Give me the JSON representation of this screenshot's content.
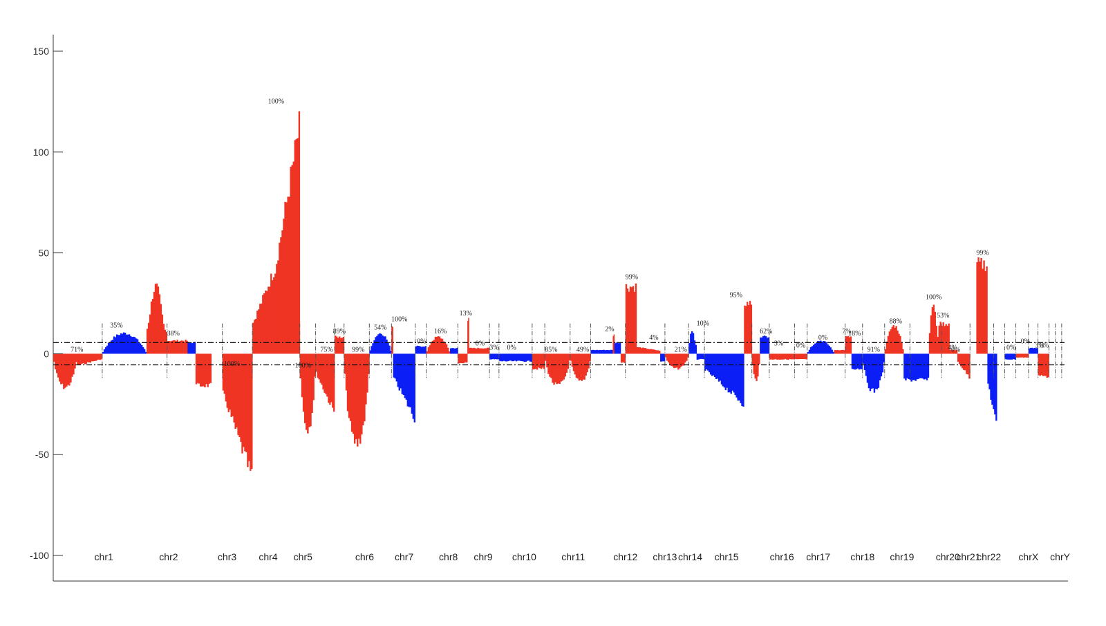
{
  "colors": {
    "gain": "#ef3424",
    "loss": "#0a1ef5",
    "axis": "#333333",
    "threshold": "#111111"
  },
  "chart_data": {
    "type": "bar",
    "title": "",
    "xlabel": "",
    "ylabel": "",
    "ylim": [
      -100,
      150
    ],
    "yticks": [
      -100,
      -50,
      0,
      50,
      100,
      150
    ],
    "threshold_lines": [
      5.5,
      -5.5
    ],
    "grid": false,
    "legend": "none",
    "chromosomes": [
      {
        "label": "chr1",
        "start": 0,
        "end": 3.1,
        "pct": "71%",
        "pct_at": 1.5,
        "pct_y": 0,
        "segs": [
          {
            "s": 0,
            "e": 1.5,
            "v": -18,
            "c": "r",
            "shape": "dip"
          },
          {
            "s": 1.5,
            "e": 3.1,
            "v": -7,
            "c": "r",
            "shape": "tail"
          }
        ]
      },
      {
        "label": "chr2",
        "start": 3.1,
        "end": 7.2,
        "pct": "35%",
        "pct_at": 4.0,
        "pct_y": 12,
        "segs": [
          {
            "s": 3.1,
            "e": 5.9,
            "v": 11,
            "c": "b",
            "shape": "hill"
          },
          {
            "s": 5.9,
            "e": 7.2,
            "v": 36,
            "c": "r",
            "shape": "peak"
          }
        ]
      },
      {
        "label": "chr3",
        "start": 7.2,
        "end": 10.7,
        "pct": "38%",
        "pct_at": 7.6,
        "pct_y": 8,
        "segs": [
          {
            "s": 7.2,
            "e": 8.5,
            "v": 7,
            "c": "r",
            "shape": "flat"
          },
          {
            "s": 8.5,
            "e": 9.0,
            "v": 6,
            "c": "b",
            "shape": "flat"
          },
          {
            "s": 9.0,
            "e": 10.0,
            "v": -17,
            "c": "r",
            "shape": "flat"
          }
        ]
      },
      {
        "label": "chr4",
        "start": 10.7,
        "end": 12.6,
        "pct": "100%",
        "pct_at": 11.3,
        "pct_y": -7,
        "segs": [
          {
            "s": 10.7,
            "e": 12.6,
            "v": -67,
            "c": "r",
            "shape": "ramp-down"
          }
        ]
      },
      {
        "label": "chr5",
        "start": 12.6,
        "end": 15.6,
        "pct": "100%",
        "pct_at": 14.1,
        "pct_y": 123,
        "segs": [
          {
            "s": 12.6,
            "e": 14.0,
            "v": 45,
            "c": "r",
            "shape": "ramp-up"
          },
          {
            "s": 14.0,
            "e": 15.6,
            "v": 123,
            "c": "r",
            "shape": "ramp-up"
          }
        ]
      },
      {
        "label": "",
        "start": 15.6,
        "end": 16.6,
        "pct": "100%",
        "pct_at": 15.8,
        "pct_y": -8,
        "segs": [
          {
            "s": 15.6,
            "e": 16.6,
            "v": -40,
            "c": "r",
            "shape": "dip"
          }
        ]
      },
      {
        "label": "",
        "start": 16.6,
        "end": 17.8,
        "pct": "75%",
        "pct_at": 17.3,
        "pct_y": 0,
        "segs": [
          {
            "s": 16.6,
            "e": 17.8,
            "v": -32,
            "c": "r",
            "shape": "ramp-down"
          }
        ]
      },
      {
        "label": "",
        "start": 17.8,
        "end": 18.4,
        "pct": "89%",
        "pct_at": 18.1,
        "pct_y": 9,
        "segs": [
          {
            "s": 17.8,
            "e": 18.4,
            "v": 9,
            "c": "r",
            "shape": "flat"
          }
        ]
      },
      {
        "label": "",
        "start": 18.4,
        "end": 20.0,
        "pct": "99%",
        "pct_at": 19.3,
        "pct_y": 0,
        "segs": [
          {
            "s": 18.4,
            "e": 20.0,
            "v": -48,
            "c": "r",
            "shape": "dip"
          }
        ]
      },
      {
        "label": "",
        "start": 20.0,
        "end": 21.4,
        "pct": "54%",
        "pct_at": 20.7,
        "pct_y": 11,
        "segs": [
          {
            "s": 20.0,
            "e": 21.4,
            "v": 11,
            "c": "b",
            "shape": "hill"
          }
        ]
      },
      {
        "label": "",
        "start": 21.4,
        "end": 22.9,
        "pct": "100%",
        "pct_at": 21.9,
        "pct_y": 15,
        "segs": [
          {
            "s": 21.4,
            "e": 21.5,
            "v": 15,
            "c": "r",
            "shape": "flat"
          },
          {
            "s": 21.5,
            "e": 22.9,
            "v": -35,
            "c": "b",
            "shape": "ramp-up"
          }
        ]
      },
      {
        "label": "",
        "start": 22.9,
        "end": 23.6,
        "pct": "0%",
        "pct_at": 23.3,
        "pct_y": 4,
        "segs": [
          {
            "s": 22.9,
            "e": 23.6,
            "v": 4,
            "c": "b",
            "shape": "flat"
          }
        ]
      },
      {
        "label": "",
        "start": 23.6,
        "end": 25.6,
        "pct": "16%",
        "pct_at": 24.5,
        "pct_y": 9,
        "segs": [
          {
            "s": 23.6,
            "e": 25.1,
            "v": 9,
            "c": "r",
            "shape": "hill"
          },
          {
            "s": 25.1,
            "e": 25.6,
            "v": 3,
            "c": "b",
            "shape": "flat"
          }
        ]
      },
      {
        "label": "",
        "start": 25.6,
        "end": 27.6,
        "pct": "13%",
        "pct_at": 26.1,
        "pct_y": 18,
        "segs": [
          {
            "s": 25.6,
            "e": 26.2,
            "v": -5,
            "c": "r",
            "shape": "flat"
          },
          {
            "s": 26.2,
            "e": 26.3,
            "v": 18,
            "c": "r",
            "shape": "flat"
          },
          {
            "s": 26.3,
            "e": 27.6,
            "v": 3,
            "c": "r",
            "shape": "flat"
          }
        ]
      },
      {
        "label": "",
        "start": 27.6,
        "end": 28.2,
        "pct": "0%",
        "pct_at": 27.0,
        "pct_y": 3,
        "segs": [
          {
            "s": 27.6,
            "e": 28.2,
            "v": -3,
            "c": "b",
            "shape": "flat"
          }
        ]
      },
      {
        "label": "",
        "start": 28.2,
        "end": 30.3,
        "pct": "3%",
        "pct_at": 27.9,
        "pct_y": 1,
        "segs": [
          {
            "s": 28.2,
            "e": 30.3,
            "v": -4,
            "c": "b",
            "shape": "flat"
          }
        ]
      },
      {
        "label": "",
        "start": 30.3,
        "end": 31.1,
        "pct": "0%",
        "pct_at": 29.0,
        "pct_y": 1,
        "segs": [
          {
            "s": 30.3,
            "e": 31.1,
            "v": -8,
            "c": "r",
            "shape": "flat"
          }
        ]
      },
      {
        "label": "",
        "start": 31.1,
        "end": 32.7,
        "pct": "85%",
        "pct_at": 31.5,
        "pct_y": 0,
        "segs": [
          {
            "s": 31.1,
            "e": 32.7,
            "v": -17,
            "c": "r",
            "shape": "dip"
          }
        ]
      },
      {
        "label": "",
        "start": 32.7,
        "end": 34.0,
        "pct": "49%",
        "pct_at": 33.5,
        "pct_y": 0,
        "segs": [
          {
            "s": 32.7,
            "e": 34.0,
            "v": -15,
            "c": "r",
            "shape": "dip"
          }
        ]
      },
      {
        "label": "",
        "start": 34.0,
        "end": 36.2,
        "pct": "2%",
        "pct_at": 35.2,
        "pct_y": 10,
        "segs": [
          {
            "s": 34.0,
            "e": 35.4,
            "v": 2,
            "c": "b",
            "shape": "flat"
          },
          {
            "s": 35.4,
            "e": 35.5,
            "v": 10,
            "c": "r",
            "shape": "flat"
          },
          {
            "s": 35.5,
            "e": 35.9,
            "v": 6,
            "c": "b",
            "shape": "flat"
          },
          {
            "s": 35.9,
            "e": 36.2,
            "v": -5,
            "c": "r",
            "shape": "flat"
          }
        ]
      },
      {
        "label": "",
        "start": 36.2,
        "end": 38.7,
        "pct": "99%",
        "pct_at": 36.6,
        "pct_y": 36,
        "segs": [
          {
            "s": 36.2,
            "e": 36.9,
            "v": 36,
            "c": "r",
            "shape": "flat"
          },
          {
            "s": 36.9,
            "e": 38.4,
            "v": 4,
            "c": "r",
            "shape": "tail"
          },
          {
            "s": 38.4,
            "e": 38.7,
            "v": -4,
            "c": "b",
            "shape": "flat"
          }
        ]
      },
      {
        "label": "",
        "start": 38.7,
        "end": 40.2,
        "pct": "4%",
        "pct_at": 38.0,
        "pct_y": 6,
        "segs": [
          {
            "s": 38.7,
            "e": 40.2,
            "v": -8,
            "c": "r",
            "shape": "dip"
          }
        ]
      },
      {
        "label": "",
        "start": 40.2,
        "end": 41.2,
        "pct": "21%",
        "pct_at": 39.7,
        "pct_y": 0,
        "segs": [
          {
            "s": 40.2,
            "e": 40.7,
            "v": 13,
            "c": "b",
            "shape": "peak"
          },
          {
            "s": 40.7,
            "e": 41.2,
            "v": -3,
            "c": "b",
            "shape": "flat"
          }
        ]
      },
      {
        "label": "",
        "start": 41.2,
        "end": 44.2,
        "pct": "10%",
        "pct_at": 41.1,
        "pct_y": 13,
        "segs": [
          {
            "s": 41.2,
            "e": 43.7,
            "v": -27,
            "c": "b",
            "shape": "ramp-down"
          },
          {
            "s": 43.7,
            "e": 44.2,
            "v": 27,
            "c": "r",
            "shape": "flat"
          }
        ]
      },
      {
        "label": "",
        "start": 44.2,
        "end": 45.3,
        "pct": "95%",
        "pct_at": 43.2,
        "pct_y": 27,
        "segs": [
          {
            "s": 44.2,
            "e": 44.7,
            "v": -14,
            "c": "r",
            "shape": "dip"
          },
          {
            "s": 44.7,
            "e": 45.3,
            "v": 9,
            "c": "b",
            "shape": "flat"
          }
        ]
      },
      {
        "label": "",
        "start": 45.3,
        "end": 46.9,
        "pct": "62%",
        "pct_at": 45.1,
        "pct_y": 9,
        "segs": [
          {
            "s": 45.3,
            "e": 46.9,
            "v": -3,
            "c": "r",
            "shape": "flat"
          }
        ]
      },
      {
        "label": "",
        "start": 46.9,
        "end": 47.7,
        "pct": "3%",
        "pct_at": 45.9,
        "pct_y": 3,
        "segs": [
          {
            "s": 46.9,
            "e": 47.7,
            "v": -3,
            "c": "r",
            "shape": "flat"
          }
        ]
      },
      {
        "label": "",
        "start": 47.7,
        "end": 50.1,
        "pct": "0%",
        "pct_at": 47.3,
        "pct_y": 2,
        "segs": [
          {
            "s": 47.7,
            "e": 49.4,
            "v": 7,
            "c": "b",
            "shape": "hill"
          },
          {
            "s": 49.4,
            "e": 50.1,
            "v": 2,
            "c": "r",
            "shape": "flat"
          }
        ]
      },
      {
        "label": "",
        "start": 50.1,
        "end": 51.2,
        "pct": "0%",
        "pct_at": 48.7,
        "pct_y": 6,
        "segs": [
          {
            "s": 50.1,
            "e": 50.5,
            "v": 9,
            "c": "r",
            "shape": "flat"
          },
          {
            "s": 50.5,
            "e": 51.2,
            "v": -8,
            "c": "b",
            "shape": "flat"
          }
        ]
      },
      {
        "label": "",
        "start": 51.2,
        "end": 52.6,
        "pct": "7%",
        "pct_at": 50.2,
        "pct_y": 9,
        "segs": [
          {
            "s": 51.2,
            "e": 52.6,
            "v": -20,
            "c": "b",
            "shape": "dip"
          }
        ]
      },
      {
        "label": "",
        "start": 52.6,
        "end": 54.2,
        "pct": "18%",
        "pct_at": 50.7,
        "pct_y": 8,
        "segs": [
          {
            "s": 52.6,
            "e": 53.8,
            "v": 15,
            "c": "r",
            "shape": "hill"
          },
          {
            "s": 53.8,
            "e": 55.4,
            "v": -14,
            "c": "b",
            "shape": "flat"
          }
        ]
      },
      {
        "label": "",
        "start": 54.2,
        "end": 56.2,
        "pct": "91%",
        "pct_at": 51.9,
        "pct_y": 0,
        "segs": [
          {
            "s": 55.4,
            "e": 56.0,
            "v": 27,
            "c": "r",
            "shape": "peak"
          },
          {
            "s": 56.0,
            "e": 56.7,
            "v": 16,
            "c": "r",
            "shape": "flat"
          }
        ]
      },
      {
        "label": "",
        "start": 56.2,
        "end": 58.0,
        "pct": "88%",
        "pct_at": 53.3,
        "pct_y": 14,
        "segs": [
          {
            "s": 56.7,
            "e": 57.2,
            "v": 2,
            "c": "r",
            "shape": "flat"
          },
          {
            "s": 57.2,
            "e": 58.0,
            "v": -13,
            "c": "r",
            "shape": "ramp-down"
          }
        ]
      },
      {
        "label": "",
        "start": 58.0,
        "end": 59.5,
        "pct": "100%",
        "pct_at": 55.7,
        "pct_y": 26,
        "segs": [
          {
            "s": 58.4,
            "e": 59.1,
            "v": 48,
            "c": "r",
            "shape": "flat"
          },
          {
            "s": 59.1,
            "e": 59.7,
            "v": -40,
            "c": "b",
            "shape": "ramp-up"
          }
        ]
      },
      {
        "label": "",
        "start": 59.5,
        "end": 60.2,
        "pct": "53%",
        "pct_at": 56.3,
        "pct_y": 17,
        "segs": [
          {
            "s": 60.2,
            "e": 60.9,
            "v": -3,
            "c": "b",
            "shape": "flat"
          }
        ]
      },
      {
        "label": "",
        "start": 60.2,
        "end": 60.9,
        "pct": "4%",
        "pct_at": 56.9,
        "pct_y": 1,
        "segs": [
          {
            "s": 60.9,
            "e": 61.7,
            "v": -2,
            "c": "r",
            "shape": "flat"
          }
        ]
      },
      {
        "label": "",
        "start": 60.9,
        "end": 61.7,
        "pct": "0%",
        "pct_at": 57.1,
        "pct_y": 0,
        "segs": [
          {
            "s": 61.7,
            "e": 62.3,
            "v": 3,
            "c": "b",
            "shape": "flat"
          }
        ]
      },
      {
        "label": "",
        "start": 61.7,
        "end": 62.3,
        "pct": "99%",
        "pct_at": 58.8,
        "pct_y": 48,
        "segs": [
          {
            "s": 62.3,
            "e": 63.0,
            "v": -12,
            "c": "r",
            "shape": "flat"
          }
        ]
      },
      {
        "label": "",
        "start": 62.3,
        "end": 63.0,
        "pct": "0%",
        "pct_at": 60.6,
        "pct_y": 1,
        "segs": []
      },
      {
        "label": "",
        "start": 63.0,
        "end": 63.4,
        "pct": "0%",
        "pct_at": 61.5,
        "pct_y": 4,
        "segs": []
      },
      {
        "label": "",
        "start": 63.4,
        "end": 63.8,
        "pct": "3%",
        "pct_at": 62.4,
        "pct_y": 2,
        "segs": []
      },
      {
        "label": "",
        "start": 63.8,
        "end": 64.2,
        "pct": "0%",
        "pct_at": 62.7,
        "pct_y": 2,
        "segs": []
      }
    ],
    "labels_x": [
      {
        "label": "chr1",
        "x": 3.2
      },
      {
        "label": "chr2",
        "x": 7.3
      },
      {
        "label": "chr3",
        "x": 11.0
      },
      {
        "label": "chr4",
        "x": 13.6
      },
      {
        "label": "chr5",
        "x": 15.8
      },
      {
        "label": "chr6",
        "x": 19.7
      },
      {
        "label": "chr7",
        "x": 22.2
      },
      {
        "label": "chr8",
        "x": 25.0
      },
      {
        "label": "chr9",
        "x": 27.2
      },
      {
        "label": "chr10",
        "x": 29.8
      },
      {
        "label": "chr11",
        "x": 32.9
      },
      {
        "label": "chr12",
        "x": 36.2
      },
      {
        "label": "chr13",
        "x": 38.7
      },
      {
        "label": "chr14",
        "x": 40.3
      },
      {
        "label": "chr15",
        "x": 42.6
      },
      {
        "label": "chr16",
        "x": 46.1
      },
      {
        "label": "chr17",
        "x": 48.4
      },
      {
        "label": "chr18",
        "x": 51.2
      },
      {
        "label": "chr19",
        "x": 53.7
      },
      {
        "label": "chr20",
        "x": 56.6
      },
      {
        "label": "chr21",
        "x": 57.9
      },
      {
        "label": "chr22",
        "x": 59.2
      },
      {
        "label": "chrX",
        "x": 61.7
      },
      {
        "label": "chrY",
        "x": 63.7
      }
    ],
    "xlim": [
      0,
      64.2
    ]
  }
}
